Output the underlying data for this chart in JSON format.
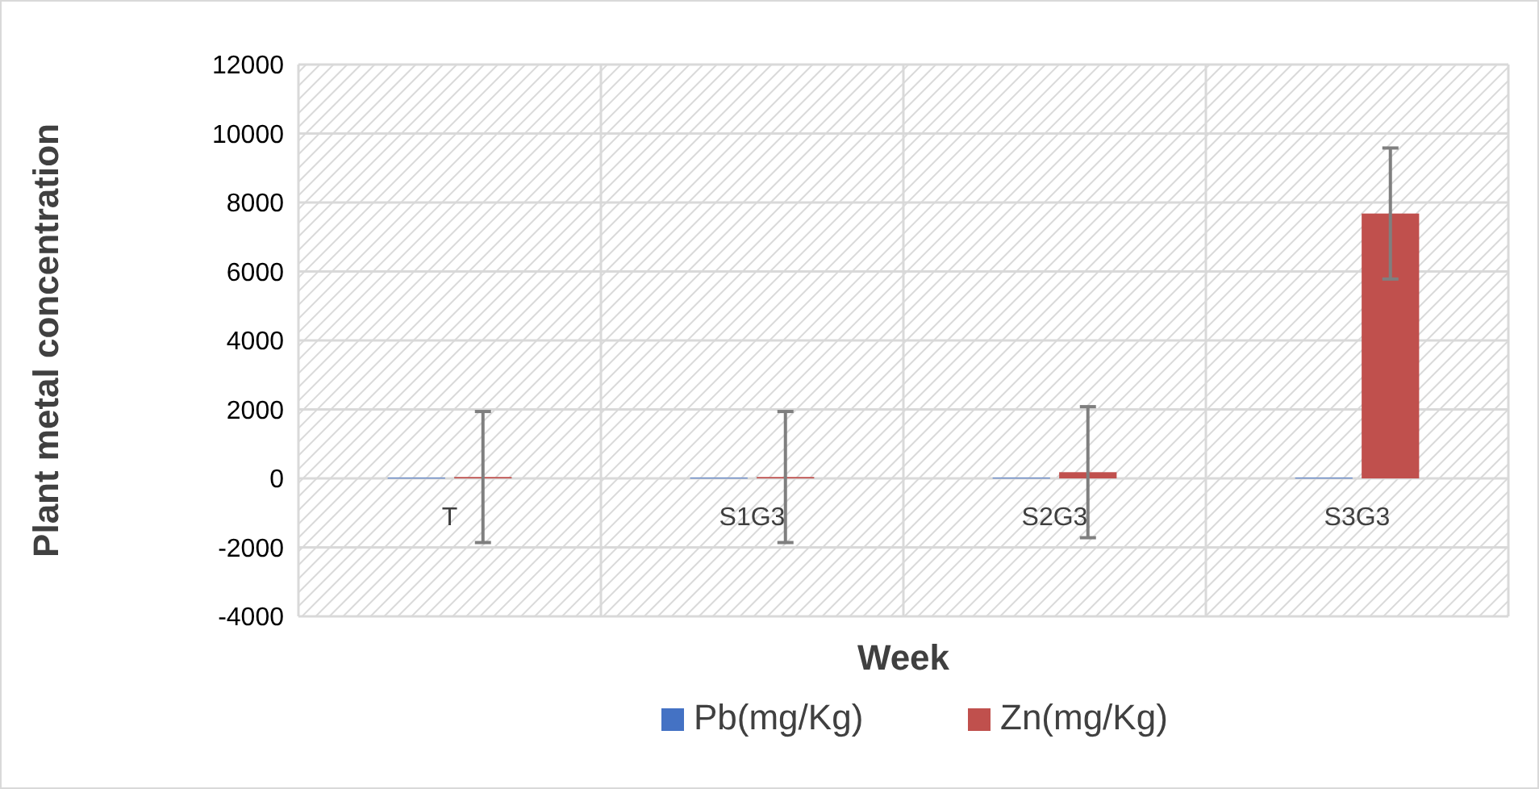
{
  "chart_data": {
    "type": "bar",
    "xlabel": "Week",
    "ylabel": "Plant metal concentration",
    "categories": [
      "T",
      "S1G3",
      "S2G3",
      "S3G3"
    ],
    "series": [
      {
        "name": "Pb(mg/Kg)",
        "color": "#4472c4",
        "values": [
          20,
          20,
          20,
          20
        ]
      },
      {
        "name": "Zn(mg/Kg)",
        "color": "#c0504d",
        "values": [
          40,
          40,
          180,
          7680
        ],
        "errors": [
          1900,
          1900,
          1900,
          1900
        ]
      }
    ],
    "ylim": [
      -4000,
      12000
    ],
    "yticks": [
      -4000,
      -2000,
      0,
      2000,
      4000,
      6000,
      8000,
      10000,
      12000
    ],
    "grid": true,
    "legend": "bottom"
  }
}
